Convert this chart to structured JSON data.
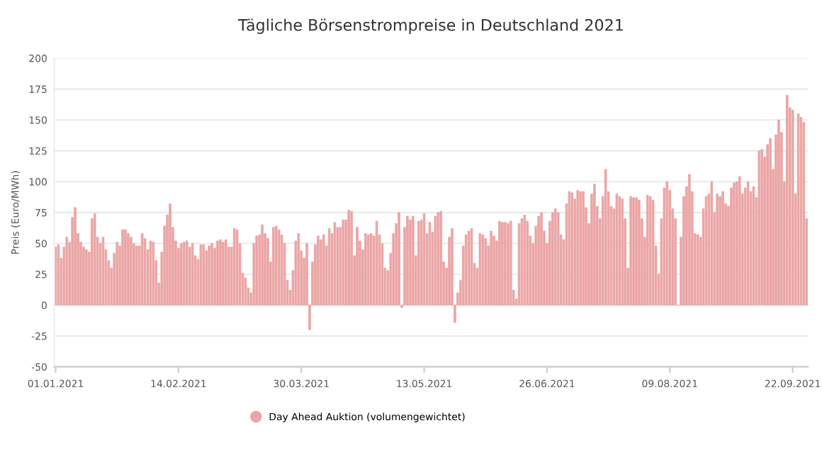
{
  "chart_data": {
    "type": "bar",
    "title": "Tägliche Börsenstrompreise in Deutschland 2021",
    "ylabel": "Preis (Euro/MWh)",
    "categories": [
      "01.01.2021",
      null,
      null,
      null,
      null,
      null,
      null,
      null,
      null,
      null,
      null,
      null,
      null,
      null,
      null,
      null,
      null,
      null,
      null,
      null,
      null,
      null,
      null,
      null,
      null,
      null,
      null,
      null,
      null,
      null,
      null,
      null,
      null,
      null,
      null,
      null,
      null,
      null,
      null,
      null,
      null,
      null,
      null,
      null,
      "14.02.2021",
      null,
      null,
      null,
      null,
      null,
      null,
      null,
      null,
      null,
      null,
      null,
      null,
      null,
      null,
      null,
      null,
      null,
      null,
      null,
      null,
      null,
      null,
      null,
      null,
      null,
      null,
      null,
      null,
      null,
      null,
      null,
      null,
      null,
      null,
      null,
      null,
      null,
      null,
      null,
      null,
      null,
      null,
      null,
      "30.03.2021",
      null,
      null,
      null,
      null,
      null,
      null,
      null,
      null,
      null,
      null,
      null,
      null,
      null,
      null,
      null,
      null,
      null,
      null,
      null,
      null,
      null,
      null,
      null,
      null,
      null,
      null,
      null,
      null,
      null,
      null,
      null,
      null,
      null,
      null,
      null,
      null,
      null,
      null,
      null,
      null,
      null,
      null,
      null,
      "13.05.2021",
      null,
      null,
      null,
      null,
      null,
      null,
      null,
      null,
      null,
      null,
      null,
      null,
      null,
      null,
      null,
      null,
      null,
      null,
      null,
      null,
      null,
      null,
      null,
      null,
      null,
      null,
      null,
      null,
      null,
      null,
      null,
      null,
      null,
      null,
      null,
      null,
      null,
      null,
      null,
      null,
      null,
      null,
      null,
      "26.06.2021",
      null,
      null,
      null,
      null,
      null,
      null,
      null,
      null,
      null,
      null,
      null,
      null,
      null,
      null,
      null,
      null,
      null,
      null,
      null,
      null,
      null,
      null,
      null,
      null,
      null,
      null,
      null,
      null,
      null,
      null,
      null,
      null,
      null,
      null,
      null,
      null,
      null,
      null,
      null,
      null,
      null,
      null,
      null,
      "09.08.2021",
      null,
      null,
      null,
      null,
      null,
      null,
      null,
      null,
      null,
      null,
      null,
      null,
      null,
      null,
      null,
      null,
      null,
      null,
      null,
      null,
      null,
      null,
      null,
      null,
      null,
      null,
      null,
      null,
      null,
      null,
      null,
      null,
      null,
      null,
      null,
      null,
      null,
      null,
      null,
      null,
      null,
      null,
      null,
      "22.09.2021",
      null,
      null,
      null,
      null,
      null
    ],
    "series": [
      {
        "name": "Day Ahead Auktion (volumengewichtet)",
        "color": "#eba5a5",
        "values": [
          47,
          49,
          38,
          47,
          55,
          51,
          71,
          79,
          58,
          51,
          47,
          45,
          43,
          70,
          74,
          55,
          50,
          55,
          45,
          36,
          30,
          42,
          51,
          48,
          61,
          61,
          58,
          55,
          50,
          48,
          48,
          58,
          54,
          45,
          52,
          51,
          36,
          18,
          43,
          64,
          73,
          82,
          63,
          52,
          46,
          50,
          51,
          52,
          47,
          50,
          40,
          37,
          49,
          49,
          44,
          48,
          50,
          46,
          52,
          53,
          51,
          53,
          47,
          47,
          62,
          61,
          50,
          26,
          22,
          14,
          10,
          50,
          56,
          57,
          65,
          58,
          54,
          35,
          63,
          64,
          61,
          57,
          50,
          20,
          12,
          28,
          52,
          58,
          44,
          38,
          50,
          -20,
          35,
          49,
          56,
          53,
          57,
          48,
          62,
          58,
          67,
          63,
          63,
          69,
          69,
          77,
          76,
          40,
          63,
          52,
          45,
          58,
          57,
          58,
          56,
          68,
          57,
          50,
          30,
          28,
          42,
          58,
          66,
          75,
          -2,
          63,
          72,
          69,
          72,
          40,
          68,
          69,
          74,
          58,
          67,
          59,
          72,
          75,
          76,
          35,
          30,
          55,
          62,
          -14,
          10,
          20,
          48,
          57,
          60,
          62,
          34,
          30,
          58,
          57,
          54,
          48,
          60,
          56,
          52,
          68,
          67,
          67,
          66,
          68,
          12,
          5,
          66,
          70,
          73,
          68,
          56,
          50,
          64,
          72,
          75,
          60,
          50,
          68,
          75,
          78,
          75,
          57,
          53,
          82,
          92,
          91,
          86,
          93,
          92,
          92,
          79,
          66,
          90,
          98,
          80,
          70,
          88,
          110,
          92,
          80,
          78,
          90,
          88,
          86,
          70,
          30,
          88,
          87,
          87,
          85,
          70,
          55,
          89,
          88,
          85,
          48,
          25,
          70,
          95,
          100,
          93,
          78,
          70,
          0,
          55,
          88,
          96,
          106,
          92,
          58,
          57,
          55,
          78,
          88,
          90,
          100,
          75,
          90,
          88,
          92,
          82,
          80,
          95,
          99,
          100,
          104,
          90,
          95,
          100,
          92,
          96,
          87,
          125,
          126,
          120,
          130,
          135,
          110,
          138,
          150,
          140,
          100,
          170,
          160,
          158,
          90,
          155,
          152,
          148,
          70
        ]
      }
    ],
    "ylim": [
      -50,
      200
    ],
    "yticks": [
      -50,
      -25,
      0,
      25,
      50,
      75,
      100,
      125,
      150,
      175,
      200
    ],
    "grid": "y",
    "legend": "bottom"
  }
}
